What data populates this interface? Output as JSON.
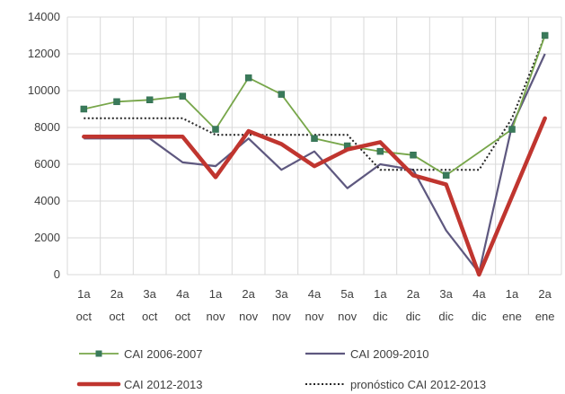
{
  "chart_data": {
    "type": "line",
    "categories": [
      [
        "1a",
        "oct"
      ],
      [
        "2a",
        "oct"
      ],
      [
        "3a",
        "oct"
      ],
      [
        "4a",
        "oct"
      ],
      [
        "1a",
        "nov"
      ],
      [
        "2a",
        "nov"
      ],
      [
        "3a",
        "nov"
      ],
      [
        "4a",
        "nov"
      ],
      [
        "5a",
        "nov"
      ],
      [
        "1a",
        "dic"
      ],
      [
        "2a",
        "dic"
      ],
      [
        "3a",
        "dic"
      ],
      [
        "4a",
        "dic"
      ],
      [
        "1a",
        "ene"
      ],
      [
        "2a",
        "ene"
      ]
    ],
    "ylim": [
      0,
      14000
    ],
    "yticks": [
      0,
      2000,
      4000,
      6000,
      8000,
      10000,
      12000,
      14000
    ],
    "grid": true,
    "legend_position": "bottom",
    "series": [
      {
        "name": "CAI 2006-2007",
        "color": "#77a64a",
        "style": "line-markers",
        "values": [
          9000,
          9400,
          9500,
          9700,
          7900,
          10700,
          9800,
          7400,
          7000,
          6700,
          6500,
          5400,
          null,
          7900,
          13000
        ]
      },
      {
        "name": "CAI 2009-2010",
        "color": "#5e587f",
        "style": "line",
        "values": [
          7400,
          7400,
          7400,
          6100,
          5900,
          7400,
          5700,
          6700,
          4700,
          6000,
          5700,
          2400,
          100,
          8100,
          12000
        ]
      },
      {
        "name": "CAI 2012-2013",
        "color": "#c0352f",
        "style": "thick",
        "values": [
          7500,
          7500,
          7500,
          7500,
          5300,
          7800,
          7100,
          5900,
          6800,
          7200,
          5400,
          4900,
          0,
          null,
          8500
        ]
      },
      {
        "name": "pronóstico CAI 2012-2013",
        "color": "#222222",
        "style": "dotted",
        "values": [
          8500,
          8500,
          8500,
          8500,
          7600,
          7600,
          7600,
          7600,
          7600,
          5700,
          5700,
          5700,
          5700,
          8500,
          13000
        ]
      }
    ]
  }
}
